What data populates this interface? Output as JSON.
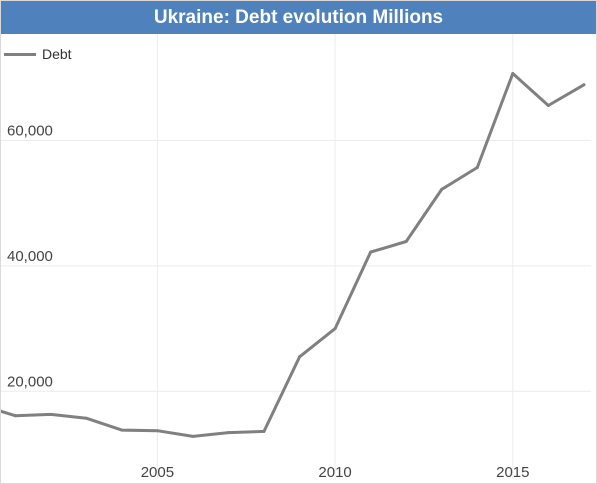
{
  "colors": {
    "title_bg": "#4f81bd",
    "title_text": "#ffffff",
    "series_line": "#808080",
    "grid": "#ececec"
  },
  "chart_data": {
    "type": "line",
    "title": "Ukraine: Debt evolution Millions",
    "xlabel": "",
    "ylabel": "",
    "legend_position": "top-left",
    "grid": true,
    "x_ticks": [
      "2005",
      "2010",
      "2015"
    ],
    "y_ticks": [
      "20,000",
      "40,000",
      "60,000"
    ],
    "xlim": [
      2000.6,
      2017.2
    ],
    "ylim": [
      6000,
      77000
    ],
    "series": [
      {
        "name": "Debt",
        "x": [
          2000.6,
          2001,
          2002,
          2003,
          2004,
          2005,
          2006,
          2007,
          2008,
          2009,
          2010,
          2011,
          2012,
          2013,
          2014,
          2015,
          2016,
          2017
        ],
        "y": [
          16800,
          16100,
          16300,
          15700,
          13800,
          13700,
          12800,
          13400,
          13600,
          25500,
          30000,
          42200,
          43900,
          52200,
          55700,
          70700,
          65600,
          68900
        ]
      }
    ]
  }
}
